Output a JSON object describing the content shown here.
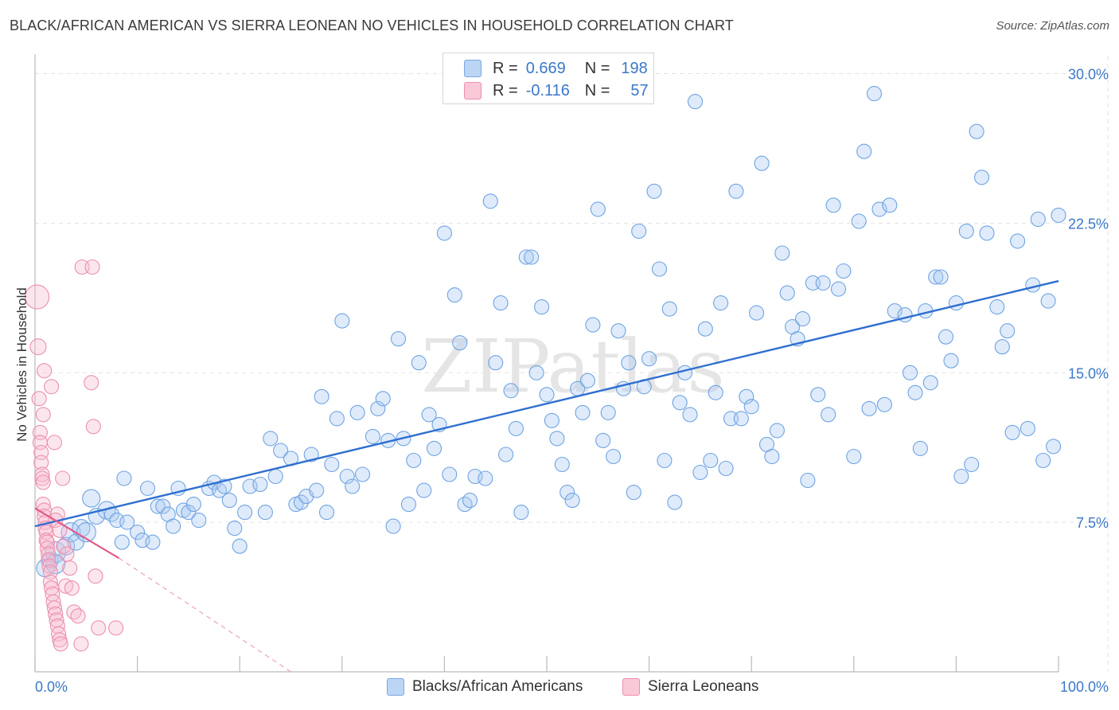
{
  "title": "BLACK/AFRICAN AMERICAN VS SIERRA LEONEAN NO VEHICLES IN HOUSEHOLD CORRELATION CHART",
  "source": "Source: ZipAtlas.com",
  "watermark": "ZIPatlas",
  "legend": {
    "rows": [
      {
        "r_label": "R =",
        "r_value": "0.669",
        "n_label": "N =",
        "n_value": "198",
        "color": "#a9c9f2"
      },
      {
        "r_label": "R =",
        "r_value": "-0.116",
        "n_label": "N =",
        "n_value": "57",
        "color": "#f7b8cc"
      }
    ]
  },
  "bottom_legend": [
    {
      "label": "Blacks/African Americans",
      "color": "#a9c9f2"
    },
    {
      "label": "Sierra Leoneans",
      "color": "#f7b8cc"
    }
  ],
  "chart_data": {
    "type": "scatter",
    "title": "BLACK/AFRICAN AMERICAN VS SIERRA LEONEAN NO VEHICLES IN HOUSEHOLD CORRELATION CHART",
    "xlabel": "",
    "ylabel": "No Vehicles in Household",
    "xlim": [
      0,
      100
    ],
    "ylim": [
      0,
      30.5
    ],
    "x_tick_labels": [
      "0.0%",
      "100.0%"
    ],
    "y_ticks": [
      7.5,
      15.0,
      22.5,
      30.0
    ],
    "y_tick_labels": [
      "7.5%",
      "15.0%",
      "22.5%",
      "30.0%"
    ],
    "grid": true,
    "series": [
      {
        "name": "Blacks/African Americans",
        "color": "#5b9ae0",
        "fill": "rgba(160,196,240,0.40)",
        "trend": {
          "x": [
            0,
            100
          ],
          "y": [
            7.3,
            19.6
          ]
        },
        "points": [
          [
            1,
            5.2
          ],
          [
            1.5,
            5.6
          ],
          [
            2,
            6.0
          ],
          [
            2,
            5.4
          ],
          [
            3,
            6.3
          ],
          [
            3.5,
            7.0
          ],
          [
            4,
            6.5
          ],
          [
            4.5,
            7.2
          ],
          [
            5,
            7.0
          ],
          [
            5.5,
            8.7
          ],
          [
            6,
            7.8
          ],
          [
            7,
            8.1
          ],
          [
            7.5,
            7.9
          ],
          [
            8,
            7.6
          ],
          [
            8.5,
            6.5
          ],
          [
            8.7,
            9.7
          ],
          [
            9,
            7.5
          ],
          [
            10,
            7.0
          ],
          [
            10.5,
            6.6
          ],
          [
            11,
            9.2
          ],
          [
            11.5,
            6.5
          ],
          [
            12,
            8.3
          ],
          [
            12.5,
            8.3
          ],
          [
            13,
            7.9
          ],
          [
            13.5,
            7.3
          ],
          [
            14,
            9.2
          ],
          [
            14.5,
            8.1
          ],
          [
            15,
            8.0
          ],
          [
            15.5,
            8.4
          ],
          [
            16,
            7.6
          ],
          [
            17,
            9.2
          ],
          [
            17.5,
            9.5
          ],
          [
            18,
            9.1
          ],
          [
            18.5,
            9.3
          ],
          [
            19,
            8.6
          ],
          [
            19.5,
            7.2
          ],
          [
            20,
            6.3
          ],
          [
            20.5,
            8.0
          ],
          [
            21,
            9.3
          ],
          [
            22,
            9.4
          ],
          [
            22.5,
            8.0
          ],
          [
            23,
            11.7
          ],
          [
            23.5,
            9.8
          ],
          [
            24,
            11.1
          ],
          [
            25,
            10.7
          ],
          [
            25.5,
            8.4
          ],
          [
            26,
            8.5
          ],
          [
            26.5,
            8.8
          ],
          [
            27,
            10.9
          ],
          [
            27.5,
            9.1
          ],
          [
            28,
            13.8
          ],
          [
            28.5,
            8.0
          ],
          [
            29,
            10.4
          ],
          [
            29.5,
            12.7
          ],
          [
            30,
            17.6
          ],
          [
            30.5,
            9.8
          ],
          [
            31,
            9.3
          ],
          [
            31.5,
            13.0
          ],
          [
            32,
            9.9
          ],
          [
            33,
            11.8
          ],
          [
            33.5,
            13.2
          ],
          [
            34,
            13.7
          ],
          [
            34.5,
            11.6
          ],
          [
            35,
            7.3
          ],
          [
            35.5,
            16.7
          ],
          [
            36,
            11.7
          ],
          [
            36.5,
            8.4
          ],
          [
            37,
            10.6
          ],
          [
            37.5,
            15.5
          ],
          [
            38,
            9.1
          ],
          [
            38.5,
            12.9
          ],
          [
            39,
            11.2
          ],
          [
            39.5,
            12.4
          ],
          [
            40,
            22.0
          ],
          [
            40.5,
            9.9
          ],
          [
            41,
            18.9
          ],
          [
            41.5,
            16.5
          ],
          [
            42,
            8.4
          ],
          [
            42.5,
            8.6
          ],
          [
            43,
            9.8
          ],
          [
            44,
            9.7
          ],
          [
            44.5,
            23.6
          ],
          [
            45,
            15.5
          ],
          [
            45.5,
            18.5
          ],
          [
            46,
            10.9
          ],
          [
            46.5,
            14.1
          ],
          [
            47,
            12.2
          ],
          [
            47.5,
            8.0
          ],
          [
            48,
            20.8
          ],
          [
            48.5,
            20.8
          ],
          [
            49,
            15.0
          ],
          [
            49.5,
            18.3
          ],
          [
            50,
            13.9
          ],
          [
            50.5,
            12.6
          ],
          [
            51,
            11.7
          ],
          [
            51.5,
            10.4
          ],
          [
            52,
            9.0
          ],
          [
            52.5,
            8.6
          ],
          [
            53,
            14.2
          ],
          [
            53.5,
            13.0
          ],
          [
            54,
            14.6
          ],
          [
            54.5,
            17.4
          ],
          [
            55,
            23.2
          ],
          [
            55.5,
            11.6
          ],
          [
            56,
            13.0
          ],
          [
            56.5,
            10.8
          ],
          [
            57,
            17.1
          ],
          [
            57.5,
            14.2
          ],
          [
            58,
            15.5
          ],
          [
            58.5,
            9.0
          ],
          [
            59,
            22.1
          ],
          [
            59.5,
            14.3
          ],
          [
            60,
            15.7
          ],
          [
            60.5,
            24.1
          ],
          [
            61,
            20.2
          ],
          [
            61.5,
            10.6
          ],
          [
            62,
            18.2
          ],
          [
            62.5,
            8.5
          ],
          [
            63,
            13.5
          ],
          [
            63.5,
            15.0
          ],
          [
            64,
            12.9
          ],
          [
            64.5,
            28.6
          ],
          [
            65,
            10.0
          ],
          [
            65.5,
            17.2
          ],
          [
            66,
            10.6
          ],
          [
            66.5,
            14.0
          ],
          [
            67,
            18.5
          ],
          [
            67.5,
            10.2
          ],
          [
            68,
            12.7
          ],
          [
            68.5,
            24.1
          ],
          [
            69,
            12.7
          ],
          [
            69.5,
            13.8
          ],
          [
            70,
            13.3
          ],
          [
            70.5,
            18.0
          ],
          [
            71,
            25.5
          ],
          [
            71.5,
            11.4
          ],
          [
            72,
            10.8
          ],
          [
            72.5,
            12.1
          ],
          [
            73,
            21.0
          ],
          [
            73.5,
            19.0
          ],
          [
            74,
            17.3
          ],
          [
            74.5,
            16.7
          ],
          [
            75,
            17.7
          ],
          [
            75.5,
            9.6
          ],
          [
            76,
            19.5
          ],
          [
            76.5,
            13.9
          ],
          [
            77,
            19.5
          ],
          [
            77.5,
            12.9
          ],
          [
            78,
            23.4
          ],
          [
            78.5,
            19.2
          ],
          [
            79,
            20.1
          ],
          [
            80,
            10.8
          ],
          [
            80.5,
            22.6
          ],
          [
            81,
            26.1
          ],
          [
            81.5,
            13.2
          ],
          [
            82,
            29.0
          ],
          [
            82.5,
            23.2
          ],
          [
            83,
            13.4
          ],
          [
            83.5,
            23.4
          ],
          [
            84,
            18.1
          ],
          [
            85,
            17.9
          ],
          [
            85.5,
            15.0
          ],
          [
            86,
            14.0
          ],
          [
            86.5,
            11.2
          ],
          [
            87,
            18.1
          ],
          [
            87.5,
            14.5
          ],
          [
            88,
            19.8
          ],
          [
            88.5,
            19.8
          ],
          [
            89,
            16.8
          ],
          [
            89.5,
            15.6
          ],
          [
            90,
            18.5
          ],
          [
            90.5,
            9.8
          ],
          [
            91,
            22.1
          ],
          [
            91.5,
            10.4
          ],
          [
            92,
            27.1
          ],
          [
            92.5,
            24.8
          ],
          [
            93,
            22.0
          ],
          [
            94,
            18.3
          ],
          [
            94.5,
            16.3
          ],
          [
            95,
            17.1
          ],
          [
            95.5,
            12.0
          ],
          [
            96,
            21.6
          ],
          [
            97,
            12.2
          ],
          [
            97.5,
            19.4
          ],
          [
            98,
            22.7
          ],
          [
            98.5,
            10.6
          ],
          [
            99,
            18.6
          ],
          [
            99.5,
            11.3
          ],
          [
            100,
            22.9
          ]
        ]
      },
      {
        "name": "Sierra Leoneans",
        "color": "#e8668f",
        "fill": "rgba(247,184,204,0.40)",
        "trend": {
          "x": [
            0,
            8.2
          ],
          "y": [
            8.2,
            5.7
          ]
        },
        "trend_extension": {
          "x": [
            8.2,
            25
          ],
          "y": [
            5.7,
            0
          ]
        },
        "points": [
          [
            0.2,
            18.8
          ],
          [
            0.3,
            16.3
          ],
          [
            0.4,
            13.7
          ],
          [
            0.5,
            12.0
          ],
          [
            0.5,
            11.5
          ],
          [
            0.6,
            11.0
          ],
          [
            0.6,
            10.5
          ],
          [
            0.7,
            9.9
          ],
          [
            0.7,
            9.7
          ],
          [
            0.8,
            9.5
          ],
          [
            0.8,
            8.4
          ],
          [
            0.9,
            8.1
          ],
          [
            0.9,
            7.8
          ],
          [
            1.0,
            7.5
          ],
          [
            1.0,
            7.2
          ],
          [
            1.1,
            7.0
          ],
          [
            1.1,
            6.6
          ],
          [
            1.2,
            6.5
          ],
          [
            1.2,
            6.2
          ],
          [
            1.3,
            5.9
          ],
          [
            1.3,
            5.6
          ],
          [
            1.4,
            5.3
          ],
          [
            1.5,
            5.0
          ],
          [
            1.5,
            4.5
          ],
          [
            1.6,
            4.2
          ],
          [
            1.7,
            3.9
          ],
          [
            1.8,
            3.5
          ],
          [
            1.9,
            3.2
          ],
          [
            2.0,
            2.9
          ],
          [
            2.1,
            2.6
          ],
          [
            2.2,
            2.3
          ],
          [
            2.3,
            1.9
          ],
          [
            2.4,
            1.6
          ],
          [
            2.5,
            1.4
          ],
          [
            0.9,
            15.1
          ],
          [
            0.8,
            12.9
          ],
          [
            1.6,
            14.3
          ],
          [
            1.9,
            11.5
          ],
          [
            2.7,
            9.7
          ],
          [
            2.2,
            7.9
          ],
          [
            2.0,
            7.6
          ],
          [
            2.4,
            7.1
          ],
          [
            2.8,
            6.3
          ],
          [
            3.1,
            5.9
          ],
          [
            3.4,
            5.2
          ],
          [
            3.0,
            4.3
          ],
          [
            3.6,
            4.2
          ],
          [
            3.8,
            3.0
          ],
          [
            4.2,
            2.8
          ],
          [
            4.5,
            1.4
          ],
          [
            5.5,
            14.5
          ],
          [
            5.7,
            12.3
          ],
          [
            4.6,
            20.3
          ],
          [
            5.6,
            20.3
          ],
          [
            7.9,
            2.2
          ],
          [
            6.2,
            2.2
          ],
          [
            5.9,
            4.8
          ]
        ]
      }
    ]
  }
}
